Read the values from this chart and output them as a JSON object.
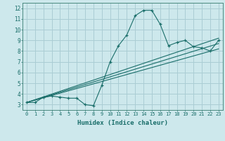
{
  "xlabel": "Humidex (Indice chaleur)",
  "ylabel": "",
  "bg_color": "#cde8ec",
  "grid_color": "#aacdd4",
  "line_color": "#1a6e6a",
  "xlim": [
    -0.5,
    23.5
  ],
  "ylim": [
    2.5,
    12.5
  ],
  "xticks": [
    0,
    1,
    2,
    3,
    4,
    5,
    6,
    7,
    8,
    9,
    10,
    11,
    12,
    13,
    14,
    15,
    16,
    17,
    18,
    19,
    20,
    21,
    22,
    23
  ],
  "yticks": [
    3,
    4,
    5,
    6,
    7,
    8,
    9,
    10,
    11,
    12
  ],
  "line1_x": [
    0,
    1,
    2,
    3,
    4,
    5,
    6,
    7,
    8,
    9,
    10,
    11,
    12,
    13,
    14,
    15,
    16,
    17,
    18,
    19,
    20,
    21,
    22,
    23
  ],
  "line1_y": [
    3.2,
    3.2,
    3.7,
    3.8,
    3.7,
    3.6,
    3.6,
    3.0,
    2.9,
    4.8,
    7.0,
    8.5,
    9.5,
    11.3,
    11.8,
    11.8,
    10.5,
    8.5,
    8.8,
    9.0,
    8.4,
    8.3,
    8.0,
    9.0
  ],
  "line2_x": [
    0,
    23
  ],
  "line2_y": [
    3.2,
    9.2
  ],
  "line3_x": [
    0,
    23
  ],
  "line3_y": [
    3.2,
    8.7
  ],
  "line4_x": [
    0,
    23
  ],
  "line4_y": [
    3.2,
    8.2
  ]
}
